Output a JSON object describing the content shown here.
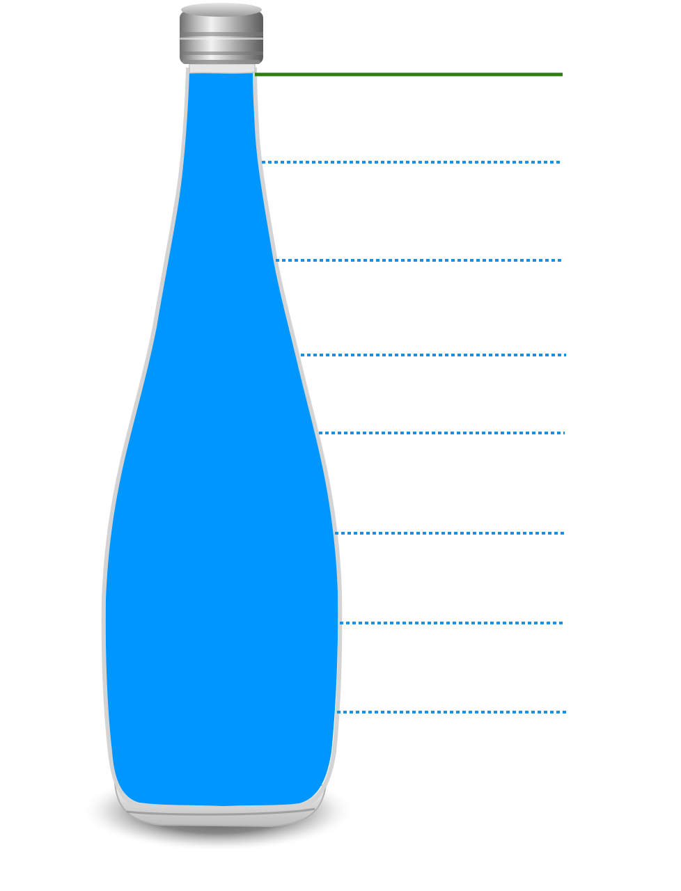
{
  "colors": {
    "background": "#ffffff",
    "liquid": "#0096ff",
    "fill_line": "#2e7d10",
    "level_lines": "#1a8fe6",
    "cap_metal": "#a8a8a8",
    "glass_outline": "#d8d8d8",
    "shadow": "#6e6e6e"
  },
  "objects": {
    "bottle": "glass-bottle",
    "cap": "metal-screw-cap",
    "liquid": "blue-liquid"
  },
  "measurement_lines": {
    "fill_line_style": "solid",
    "level_line_style": "dotted",
    "level_line_count": 7
  }
}
